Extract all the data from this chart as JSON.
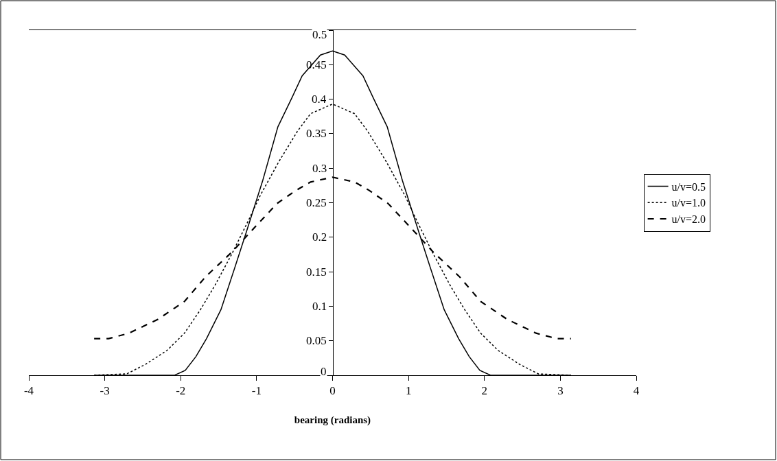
{
  "chart_data": {
    "type": "line",
    "xlabel": "bearing (radians)",
    "xlim": [
      -4,
      4
    ],
    "xticks": [
      -4,
      -3,
      -2,
      -1,
      0,
      1,
      2,
      3,
      4
    ],
    "ylim": [
      0,
      0.5
    ],
    "yticks": [
      0,
      0.05,
      0.1,
      0.15,
      0.2,
      0.25,
      0.3,
      0.35,
      0.4,
      0.45,
      0.5
    ],
    "legend": "right",
    "marker": "none",
    "series": [
      {
        "name": "u/v=0.5",
        "color": "#000000",
        "line_style": "solid",
        "x": [
          -3.14,
          -2.08,
          -1.94,
          -1.8,
          -1.66,
          -1.47,
          -1.29,
          -1.14,
          -0.92,
          -0.72,
          -0.54,
          -0.4,
          -0.16,
          0,
          0.16,
          0.4,
          0.54,
          0.72,
          0.92,
          1.14,
          1.29,
          1.47,
          1.66,
          1.8,
          1.94,
          2.08,
          3.14
        ],
        "values": [
          0,
          0,
          0.007,
          0.027,
          0.053,
          0.095,
          0.155,
          0.206,
          0.282,
          0.36,
          0.401,
          0.434,
          0.464,
          0.47,
          0.464,
          0.434,
          0.401,
          0.36,
          0.282,
          0.206,
          0.155,
          0.095,
          0.053,
          0.027,
          0.007,
          0,
          0
        ]
      },
      {
        "name": "u/v=1.0",
        "color": "#000000",
        "line_style": "dotted",
        "x": [
          -3.14,
          -2.71,
          -2.46,
          -2.18,
          -1.95,
          -1.74,
          -1.55,
          -1.33,
          -1.1,
          -0.95,
          -0.71,
          -0.46,
          -0.29,
          0,
          0.29,
          0.46,
          0.71,
          0.95,
          1.1,
          1.33,
          1.55,
          1.74,
          1.95,
          2.18,
          2.46,
          2.71,
          3.14
        ],
        "values": [
          0,
          0.002,
          0.016,
          0.036,
          0.061,
          0.095,
          0.13,
          0.175,
          0.226,
          0.261,
          0.309,
          0.354,
          0.379,
          0.393,
          0.379,
          0.354,
          0.309,
          0.261,
          0.226,
          0.175,
          0.13,
          0.095,
          0.061,
          0.036,
          0.016,
          0.002,
          0
        ]
      },
      {
        "name": "u/v=2.0",
        "color": "#000000",
        "line_style": "dashed",
        "x": [
          -3.14,
          -2.95,
          -2.68,
          -2.3,
          -1.95,
          -1.67,
          -1.33,
          -1.07,
          -0.73,
          -0.48,
          -0.29,
          0,
          0.29,
          0.48,
          0.73,
          1.07,
          1.33,
          1.67,
          1.95,
          2.3,
          2.68,
          2.95,
          3.14
        ],
        "values": [
          0.053,
          0.053,
          0.061,
          0.081,
          0.107,
          0.143,
          0.178,
          0.209,
          0.249,
          0.268,
          0.28,
          0.287,
          0.28,
          0.268,
          0.249,
          0.209,
          0.178,
          0.143,
          0.107,
          0.081,
          0.061,
          0.053,
          0.053
        ]
      }
    ]
  }
}
